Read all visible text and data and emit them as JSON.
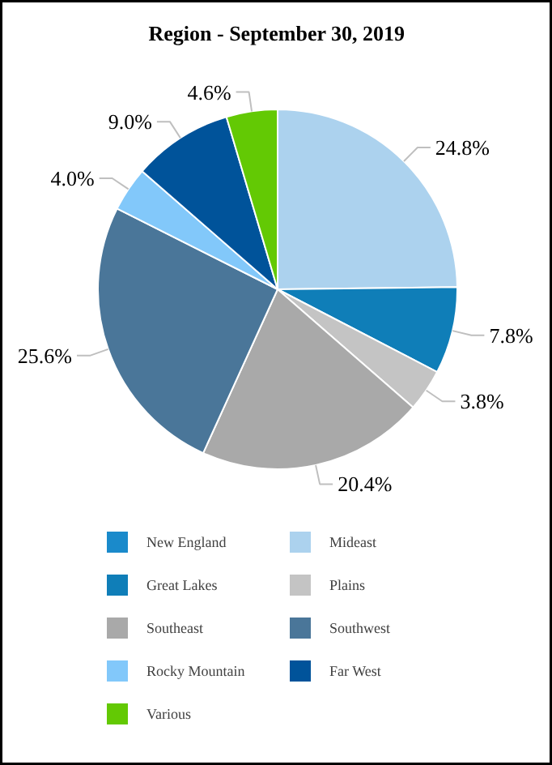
{
  "chart_data": {
    "type": "pie",
    "title": "Region - September 30, 2019",
    "categories": [
      "New England",
      "Mideast",
      "Great Lakes",
      "Plains",
      "Southeast",
      "Southwest",
      "Rocky Mountain",
      "Far West",
      "Various"
    ],
    "values": [
      0,
      24.8,
      7.8,
      3.8,
      20.4,
      25.6,
      4.0,
      9.0,
      4.6
    ],
    "value_labels": [
      null,
      "24.8%",
      "7.8%",
      "3.8%",
      "20.4%",
      "25.6%",
      "4.0%",
      "9.0%",
      "4.6%"
    ],
    "colors": [
      "#1a8acb",
      "#acd2ee",
      "#0f7eb8",
      "#c4c4c4",
      "#a9a9a9",
      "#4a7699",
      "#82c8fa",
      "#00539a",
      "#63c904"
    ],
    "legend": "bottom"
  }
}
